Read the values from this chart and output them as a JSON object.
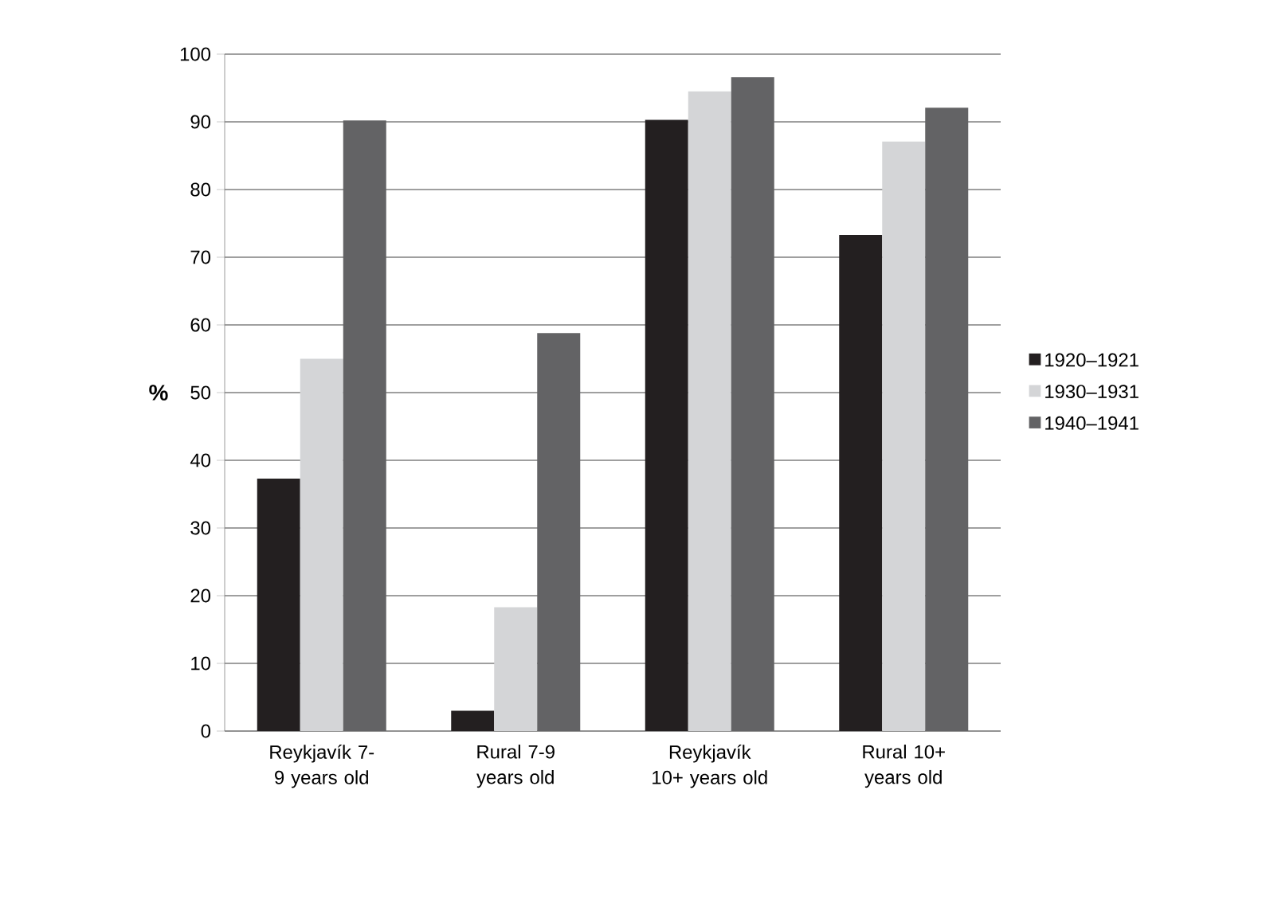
{
  "chart_data": {
    "type": "bar",
    "ylabel": "%",
    "categories": [
      "Reykjavík 7-9 years old",
      "Rural 7-9 years old",
      "Reykjavík 10+ years old",
      "Rural 10+ years old"
    ],
    "series": [
      {
        "name": "1920–1921",
        "color": "#231f20",
        "values": [
          37.3,
          3,
          90.3,
          73.3
        ]
      },
      {
        "name": "1930–1931",
        "color": "#d4d5d7",
        "values": [
          55,
          18.3,
          94.5,
          87.1
        ]
      },
      {
        "name": "1940–1941",
        "color": "#636365",
        "values": [
          90.2,
          58.8,
          96.6,
          92.1
        ]
      }
    ],
    "ylim": [
      0,
      100
    ],
    "yticks": [
      0,
      10,
      20,
      30,
      40,
      50,
      60,
      70,
      80,
      90,
      100
    ],
    "grid": "y",
    "legend": "right"
  }
}
